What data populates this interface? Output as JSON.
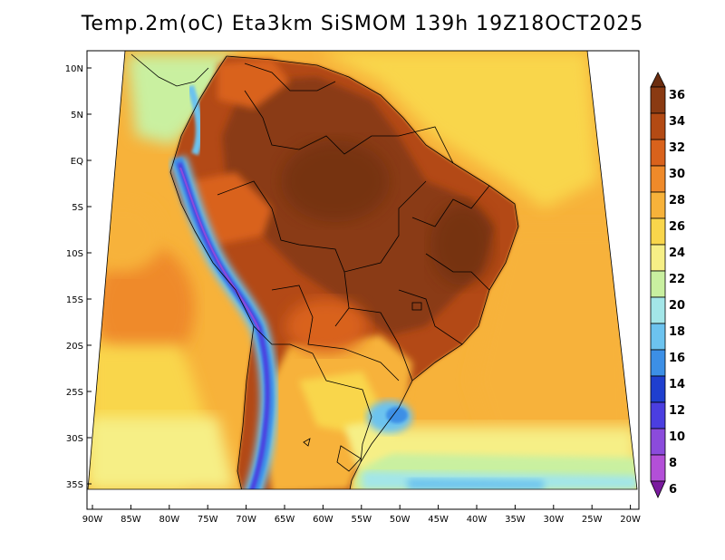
{
  "title": "Temp.2m(oC) Eta3km SiSMOM 139h 19Z18OCT2025",
  "map": {
    "lon_ticks": [
      "90W",
      "85W",
      "80W",
      "75W",
      "70W",
      "65W",
      "60W",
      "55W",
      "50W",
      "45W",
      "40W",
      "35W",
      "30W",
      "25W",
      "20W"
    ],
    "lat_ticks": [
      "10N",
      "5N",
      "EQ",
      "5S",
      "10S",
      "15S",
      "20S",
      "25S",
      "30S",
      "35S"
    ]
  },
  "colorbar": {
    "labels": [
      "36",
      "34",
      "32",
      "30",
      "28",
      "26",
      "24",
      "22",
      "20",
      "18",
      "16",
      "14",
      "12",
      "10",
      "8",
      "6"
    ],
    "colors": [
      "#6b2d0f",
      "#8a3a12",
      "#b34a14",
      "#d9621c",
      "#ef8a2a",
      "#f7b23a",
      "#f9d64b",
      "#f6ef86",
      "#c9f0a0",
      "#a3e6e8",
      "#6cc3ef",
      "#3c8fe6",
      "#1f3fcf",
      "#4b3ee0",
      "#8b4bdc",
      "#b34fd8",
      "#7a1a9e"
    ]
  },
  "chart_data": {
    "type": "heatmap",
    "title": "Temp.2m(oC) Eta3km SiSMOM 139h 19Z18OCT2025",
    "x_ticks": [
      "90W",
      "85W",
      "80W",
      "75W",
      "70W",
      "65W",
      "60W",
      "55W",
      "50W",
      "45W",
      "40W",
      "35W",
      "30W",
      "25W",
      "20W"
    ],
    "y_ticks": [
      "10N",
      "5N",
      "EQ",
      "5S",
      "10S",
      "15S",
      "20S",
      "25S",
      "30S",
      "35S"
    ],
    "color_scale_values": [
      6,
      8,
      10,
      12,
      14,
      16,
      18,
      20,
      22,
      24,
      26,
      28,
      30,
      32,
      34,
      36
    ]
  }
}
